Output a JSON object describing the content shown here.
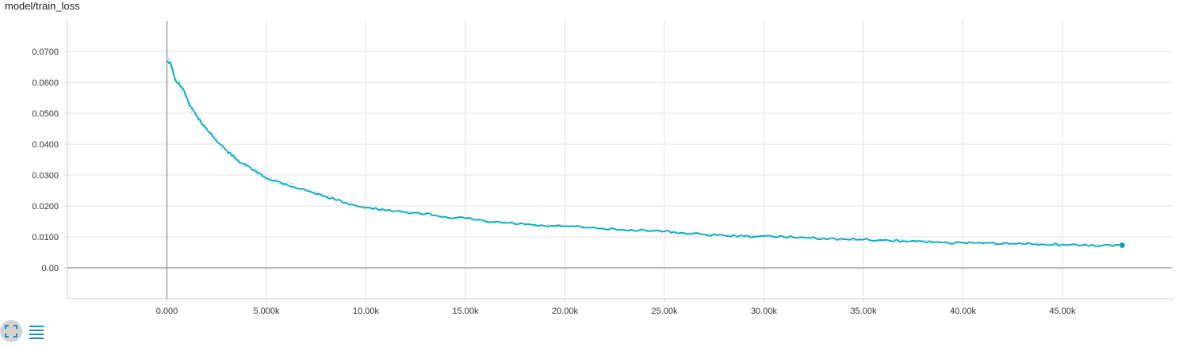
{
  "title": "model/train_loss",
  "colors": {
    "line": "#0ba8b8",
    "raw": "#aee6ea",
    "grid": "#e0e0e0",
    "axis": "#9e9e9e",
    "zero_axis": "#9e9e9e",
    "controls": "#1e88c8"
  },
  "controls": {
    "fullscreen_icon": "fullscreen-icon",
    "data_icon": "list-icon"
  },
  "chart_data": {
    "type": "line",
    "title": "model/train_loss",
    "xlabel": "",
    "ylabel": "",
    "xlim": [
      -5000,
      50500
    ],
    "ylim": [
      -0.01,
      0.08
    ],
    "grid": true,
    "x_ticks": [
      0,
      5000,
      10000,
      15000,
      20000,
      25000,
      30000,
      35000,
      40000,
      45000
    ],
    "x_tick_labels": [
      "0.000",
      "5.000k",
      "10.00k",
      "15.00k",
      "20.00k",
      "25.00k",
      "30.00k",
      "35.00k",
      "40.00k",
      "45.00k"
    ],
    "y_ticks": [
      0,
      0.01,
      0.02,
      0.03,
      0.04,
      0.05,
      0.06,
      0.07
    ],
    "y_tick_labels": [
      "0.00",
      "0.0100",
      "0.0200",
      "0.0300",
      "0.0400",
      "0.0500",
      "0.0600",
      "0.0700"
    ],
    "series": [
      {
        "x": [
          0,
          200,
          400,
          800,
          1200,
          1600,
          2000,
          2500,
          3000,
          3500,
          4000,
          4500,
          5000,
          5500,
          6000,
          7000,
          8000,
          9000,
          10000,
          11000,
          12000,
          13000,
          14000,
          15000,
          16000,
          17000,
          18000,
          19000,
          20000,
          21000,
          22000,
          23000,
          24000,
          25000,
          26000,
          27000,
          28000,
          29000,
          30000,
          31000,
          32000,
          33000,
          34000,
          35000,
          36000,
          37000,
          38000,
          39000,
          40000,
          41000,
          42000,
          43000,
          44000,
          45000,
          46000,
          47000,
          48000
        ],
        "y": [
          0.067,
          0.066,
          0.061,
          0.058,
          0.052,
          0.048,
          0.045,
          0.041,
          0.038,
          0.035,
          0.033,
          0.031,
          0.029,
          0.028,
          0.027,
          0.025,
          0.023,
          0.021,
          0.0195,
          0.0185,
          0.018,
          0.0175,
          0.0165,
          0.016,
          0.015,
          0.0145,
          0.014,
          0.0135,
          0.0135,
          0.013,
          0.0125,
          0.0122,
          0.0122,
          0.0118,
          0.0112,
          0.0108,
          0.0105,
          0.0102,
          0.0102,
          0.01,
          0.0098,
          0.0095,
          0.0092,
          0.0091,
          0.0089,
          0.0087,
          0.0085,
          0.0082,
          0.0081,
          0.0079,
          0.0078,
          0.0077,
          0.0077,
          0.0075,
          0.0073,
          0.0072,
          0.0073
        ]
      }
    ]
  }
}
